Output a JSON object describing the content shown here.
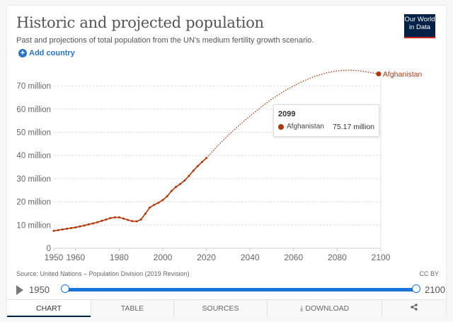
{
  "header": {
    "title": "Historic and projected population",
    "subtitle": "Past and projections of total population from the UN's medium fertility growth scenario.",
    "logo_line1": "Our World",
    "logo_line2": "in Data"
  },
  "controls": {
    "add_country_label": "Add country",
    "add_icon": "plus-circle-icon"
  },
  "footer": {
    "source": "Source: United Nations – Population Division (2019 Revision)",
    "license": "CC BY"
  },
  "timeline": {
    "start_label": "1950",
    "end_label": "2100",
    "range_start": 1950,
    "range_end": 2100
  },
  "tabs": [
    {
      "label": "CHART",
      "active": true
    },
    {
      "label": "TABLE",
      "active": false
    },
    {
      "label": "SOURCES",
      "active": false
    },
    {
      "label": "DOWNLOAD",
      "active": false,
      "icon": "download-icon"
    },
    {
      "label": "",
      "active": false,
      "icon": "share-icon"
    }
  ],
  "tooltip": {
    "year": "2099",
    "entity": "Afghanistan",
    "value": "75.17 million"
  },
  "colors": {
    "series": "#b13507",
    "accent": "#1a73d9",
    "brand": "#002147"
  },
  "chart_data": {
    "type": "line",
    "title": "Historic and projected population",
    "xlabel": "",
    "ylabel": "",
    "xlim": [
      1950,
      2100
    ],
    "ylim": [
      0,
      75000000
    ],
    "x_ticks": [
      1950,
      1960,
      1980,
      2000,
      2020,
      2040,
      2060,
      2080,
      2100
    ],
    "y_ticks": [
      0,
      10000000,
      20000000,
      30000000,
      40000000,
      50000000,
      60000000,
      70000000
    ],
    "y_tick_labels": [
      "0",
      "10 million",
      "20 million",
      "30 million",
      "40 million",
      "50 million",
      "60 million",
      "70 million"
    ],
    "grid": true,
    "legend": "right-end-label",
    "series": [
      {
        "name": "Afghanistan",
        "label": "Afghanistan",
        "historic": {
          "x": [
            1950,
            1952,
            1954,
            1956,
            1958,
            1960,
            1962,
            1964,
            1966,
            1968,
            1970,
            1972,
            1974,
            1976,
            1978,
            1980,
            1982,
            1984,
            1986,
            1988,
            1990,
            1992,
            1994,
            1996,
            1998,
            2000,
            2002,
            2004,
            2006,
            2008,
            2010,
            2012,
            2014,
            2016,
            2018,
            2020
          ],
          "y": [
            7.5,
            7.8,
            8.1,
            8.4,
            8.7,
            9.0,
            9.4,
            9.8,
            10.3,
            10.7,
            11.2,
            11.8,
            12.4,
            13.0,
            13.3,
            13.3,
            12.8,
            12.2,
            11.7,
            11.6,
            12.4,
            14.9,
            17.5,
            18.7,
            19.6,
            20.8,
            22.4,
            24.7,
            26.4,
            27.7,
            29.2,
            31.2,
            33.4,
            35.4,
            37.2,
            38.9
          ]
        },
        "projected": {
          "x": [
            2020,
            2025,
            2030,
            2035,
            2040,
            2045,
            2050,
            2055,
            2060,
            2065,
            2070,
            2075,
            2080,
            2085,
            2090,
            2095,
            2099,
            2100
          ],
          "y": [
            38.9,
            44.0,
            48.7,
            53.0,
            57.0,
            60.8,
            64.3,
            67.4,
            70.0,
            72.3,
            74.2,
            75.6,
            76.5,
            76.8,
            76.5,
            75.8,
            75.17,
            74.9
          ]
        },
        "units": "million"
      }
    ]
  }
}
